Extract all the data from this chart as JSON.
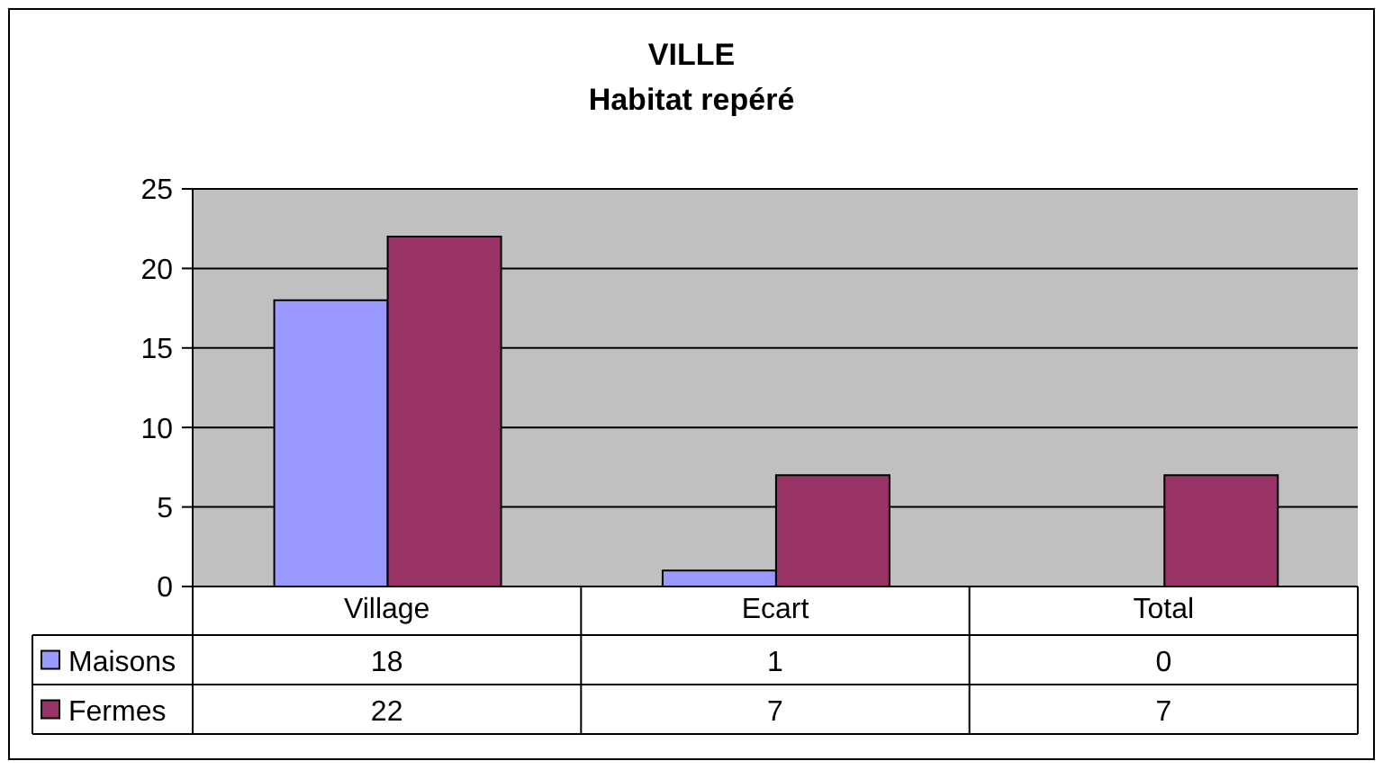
{
  "chart_data": {
    "type": "bar",
    "title": "VILLE",
    "subtitle": "Habitat repéré",
    "categories": [
      "Village",
      "Ecart",
      "Total"
    ],
    "series": [
      {
        "name": "Maisons",
        "color": "#9999ff",
        "values": [
          18,
          1,
          0
        ]
      },
      {
        "name": "Fermes",
        "color": "#993366",
        "values": [
          22,
          7,
          7
        ]
      }
    ],
    "ylim": [
      0,
      25
    ],
    "yticks": [
      0,
      5,
      10,
      15,
      20,
      25
    ],
    "grid": "y",
    "legend": "bottom left",
    "data_labels": true
  }
}
